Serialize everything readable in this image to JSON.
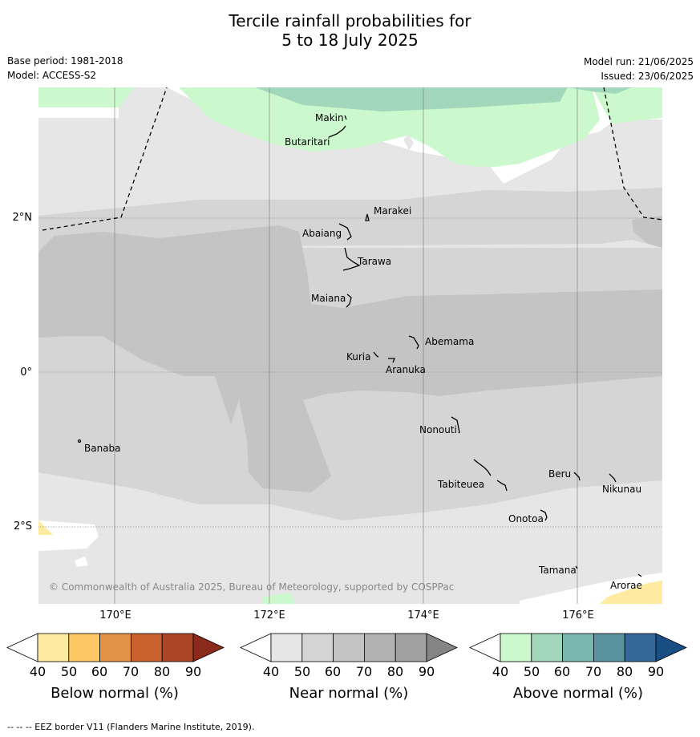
{
  "header": {
    "title_line1": "Tercile rainfall probabilities for",
    "title_line2": "5 to 18 July 2025",
    "base_period": "Base period: 1981-2018",
    "model": "Model: ACCESS-S2",
    "model_run": "Model run: 21/06/2025",
    "issued": "Issued: 23/06/2025"
  },
  "axes": {
    "lat_labels": [
      "2°N",
      "0°",
      "2°S"
    ],
    "lon_labels": [
      "170°E",
      "172°E",
      "174°E",
      "176°E"
    ]
  },
  "places": {
    "makin": "Makin",
    "butaritari": "Butaritari",
    "marakei": "Marakei",
    "abaiang": "Abaiang",
    "tarawa": "Tarawa",
    "maiana": "Maiana",
    "abemama": "Abemama",
    "kuria": "Kuria",
    "aranuka": "Aranuka",
    "nonouti": "Nonouti",
    "banaba": "Banaba",
    "beru": "Beru",
    "nikunau": "Nikunau",
    "tabiteuea": "Tabiteuea",
    "onotoa": "Onotoa",
    "tamana": "Tamana",
    "arorae": "Arorae"
  },
  "copyright": "© Commonwealth of Australia 2025, Bureau of Meteorology, supported by COSPPac",
  "colorbars": [
    {
      "label": "Below normal (%)",
      "ticks": [
        "40",
        "50",
        "60",
        "70",
        "80",
        "90"
      ],
      "colors": [
        "#ffffff",
        "#feeaa0",
        "#fdc865",
        "#e29348",
        "#c9622f",
        "#ab4525",
        "#8b2a1a"
      ]
    },
    {
      "label": "Near normal (%)",
      "ticks": [
        "40",
        "50",
        "60",
        "70",
        "80",
        "90"
      ],
      "colors": [
        "#ffffff",
        "#e6e6e6",
        "#d5d5d5",
        "#c4c4c4",
        "#b2b2b2",
        "#a1a1a1",
        "#858585"
      ]
    },
    {
      "label": "Above normal (%)",
      "ticks": [
        "40",
        "50",
        "60",
        "70",
        "80",
        "90"
      ],
      "colors": [
        "#ffffff",
        "#cbf8cc",
        "#a3d7bc",
        "#7bb5b0",
        "#5a929f",
        "#35679a",
        "#194e85"
      ]
    }
  ],
  "footer": "--  --  -- EEZ border V11 (Flanders Marine Institute, 2019)."
}
